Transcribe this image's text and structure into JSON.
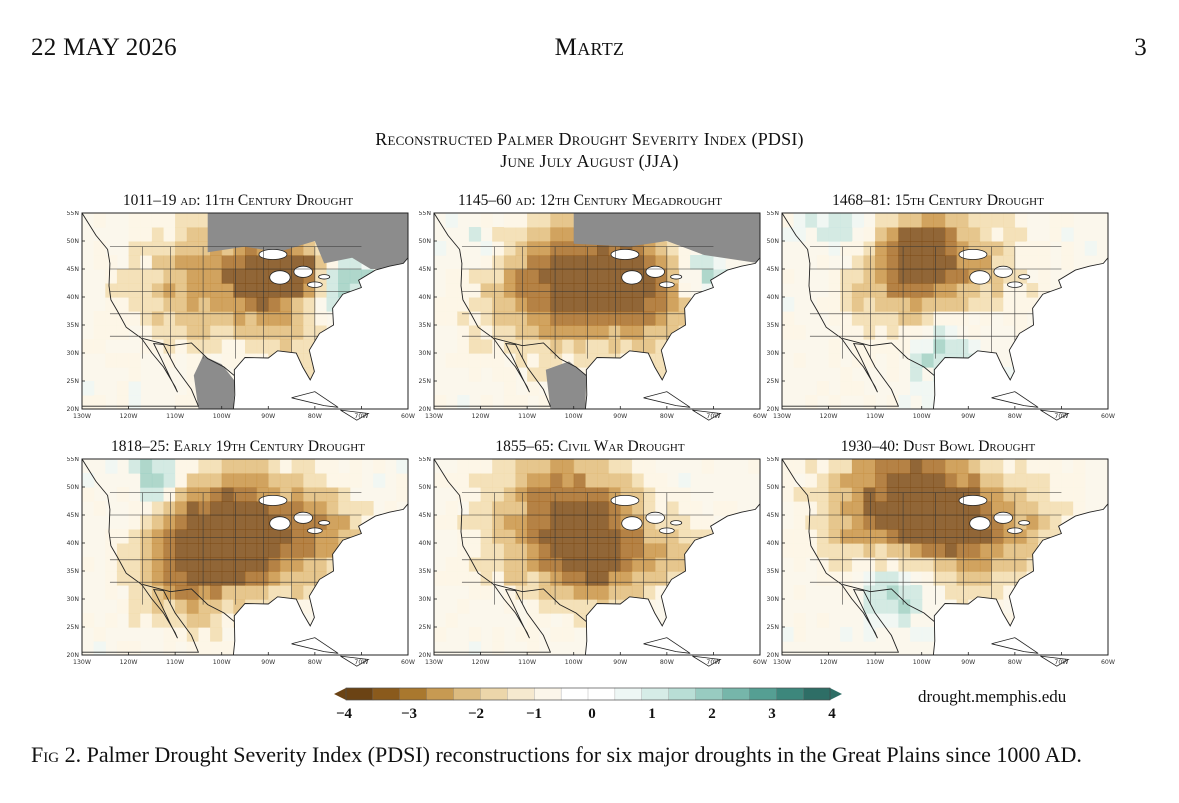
{
  "header": {
    "date": "22 MAY 2026",
    "author": "Martz",
    "page_number": "3"
  },
  "figure": {
    "title_line1": "Reconstructed Palmer Drought Severity Index (PDSI)",
    "title_line2": "June July August (JJA)",
    "panels": [
      {
        "title": "1011–19 ad: 11th Century Drought"
      },
      {
        "title": "1145–60 ad: 12th Century Megadrought"
      },
      {
        "title": "1468–81: 15th Century Drought"
      },
      {
        "title": "1818–25: Early 19th Century Drought"
      },
      {
        "title": "1855–65: Civil War Drought"
      },
      {
        "title": "1930–40: Dust Bowl Drought"
      }
    ],
    "lat_ticks": [
      "55N",
      "50N",
      "45N",
      "40N",
      "35N",
      "30N",
      "25N",
      "20N"
    ],
    "lon_ticks": [
      "130W",
      "120W",
      "110W",
      "100W",
      "90W",
      "80W",
      "70W",
      "60W"
    ],
    "colorbar": {
      "ticks": [
        "−4",
        "−3",
        "−2",
        "−1",
        "0",
        "1",
        "2",
        "3",
        "4"
      ],
      "dry_color": "#6b4314",
      "wet_color": "#2e6e66",
      "neutral_color": "#ffffff",
      "missing_color": "#8c8c8c"
    },
    "credit": "drought.memphis.edu"
  },
  "caption": {
    "label": "Fig 2.",
    "text": " Palmer Drought Severity Index (PDSI) reconstructions for six major droughts in the Great Plains since 1000 AD."
  }
}
